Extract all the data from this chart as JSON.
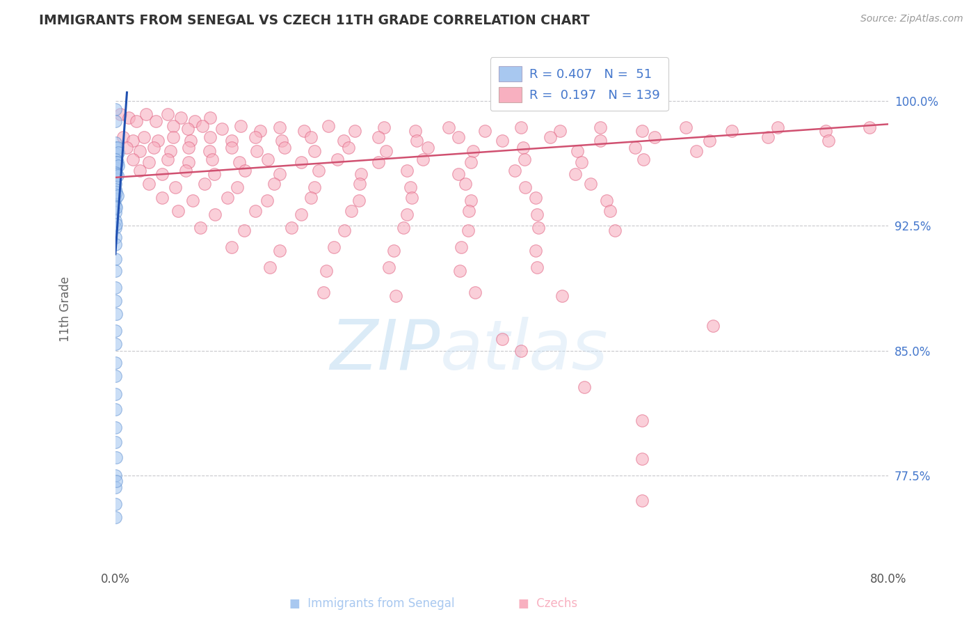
{
  "title": "IMMIGRANTS FROM SENEGAL VS CZECH 11TH GRADE CORRELATION CHART",
  "source": "Source: ZipAtlas.com",
  "ylabel": "11th Grade",
  "ytick_labels": [
    "100.0%",
    "92.5%",
    "85.0%",
    "77.5%"
  ],
  "ytick_values": [
    1.0,
    0.925,
    0.85,
    0.775
  ],
  "xlim": [
    0.0,
    0.8
  ],
  "ylim": [
    0.72,
    1.03
  ],
  "watermark_zip": "ZIP",
  "watermark_atlas": "atlas",
  "legend_r_blue": "0.407",
  "legend_n_blue": "51",
  "legend_r_pink": "0.197",
  "legend_n_pink": "139",
  "blue_color": "#a8c8f0",
  "blue_edge_color": "#6090d0",
  "pink_color": "#f8b0c0",
  "pink_edge_color": "#e06080",
  "blue_line_color": "#2050b0",
  "pink_line_color": "#d05070",
  "blue_text_color": "#4477cc",
  "legend_box_blue": "#a8c8f0",
  "legend_box_pink": "#f8b0c0",
  "blue_scatter": [
    [
      0.0,
      0.995
    ],
    [
      0.0,
      0.988
    ],
    [
      0.0,
      0.975
    ],
    [
      0.0,
      0.972
    ],
    [
      0.0,
      0.968
    ],
    [
      0.002,
      0.972
    ],
    [
      0.003,
      0.969
    ],
    [
      0.0,
      0.965
    ],
    [
      0.0,
      0.962
    ],
    [
      0.0,
      0.96
    ],
    [
      0.001,
      0.963
    ],
    [
      0.002,
      0.963
    ],
    [
      0.003,
      0.961
    ],
    [
      0.0,
      0.957
    ],
    [
      0.0,
      0.953
    ],
    [
      0.0,
      0.95
    ],
    [
      0.001,
      0.956
    ],
    [
      0.002,
      0.955
    ],
    [
      0.0,
      0.947
    ],
    [
      0.0,
      0.944
    ],
    [
      0.0,
      0.941
    ],
    [
      0.001,
      0.945
    ],
    [
      0.002,
      0.943
    ],
    [
      0.0,
      0.937
    ],
    [
      0.0,
      0.933
    ],
    [
      0.001,
      0.936
    ],
    [
      0.0,
      0.928
    ],
    [
      0.0,
      0.924
    ],
    [
      0.001,
      0.926
    ],
    [
      0.0,
      0.918
    ],
    [
      0.0,
      0.914
    ],
    [
      0.0,
      0.905
    ],
    [
      0.0,
      0.898
    ],
    [
      0.0,
      0.888
    ],
    [
      0.0,
      0.88
    ],
    [
      0.001,
      0.872
    ],
    [
      0.0,
      0.862
    ],
    [
      0.0,
      0.854
    ],
    [
      0.0,
      0.843
    ],
    [
      0.0,
      0.835
    ],
    [
      0.0,
      0.824
    ],
    [
      0.0,
      0.815
    ],
    [
      0.0,
      0.804
    ],
    [
      0.0,
      0.795
    ],
    [
      0.001,
      0.786
    ],
    [
      0.0,
      0.775
    ],
    [
      0.0,
      0.768
    ],
    [
      0.001,
      0.772
    ],
    [
      0.0,
      0.758
    ],
    [
      0.0,
      0.75
    ]
  ],
  "pink_scatter": [
    [
      0.005,
      0.992
    ],
    [
      0.014,
      0.99
    ],
    [
      0.022,
      0.988
    ],
    [
      0.032,
      0.992
    ],
    [
      0.042,
      0.988
    ],
    [
      0.054,
      0.992
    ],
    [
      0.068,
      0.99
    ],
    [
      0.082,
      0.988
    ],
    [
      0.098,
      0.99
    ],
    [
      0.06,
      0.985
    ],
    [
      0.075,
      0.983
    ],
    [
      0.09,
      0.985
    ],
    [
      0.11,
      0.983
    ],
    [
      0.13,
      0.985
    ],
    [
      0.15,
      0.982
    ],
    [
      0.17,
      0.984
    ],
    [
      0.195,
      0.982
    ],
    [
      0.22,
      0.985
    ],
    [
      0.248,
      0.982
    ],
    [
      0.278,
      0.984
    ],
    [
      0.31,
      0.982
    ],
    [
      0.345,
      0.984
    ],
    [
      0.382,
      0.982
    ],
    [
      0.42,
      0.984
    ],
    [
      0.46,
      0.982
    ],
    [
      0.502,
      0.984
    ],
    [
      0.545,
      0.982
    ],
    [
      0.59,
      0.984
    ],
    [
      0.638,
      0.982
    ],
    [
      0.685,
      0.984
    ],
    [
      0.735,
      0.982
    ],
    [
      0.78,
      0.984
    ],
    [
      0.008,
      0.978
    ],
    [
      0.018,
      0.976
    ],
    [
      0.03,
      0.978
    ],
    [
      0.044,
      0.976
    ],
    [
      0.06,
      0.978
    ],
    [
      0.078,
      0.976
    ],
    [
      0.098,
      0.978
    ],
    [
      0.12,
      0.976
    ],
    [
      0.145,
      0.978
    ],
    [
      0.172,
      0.976
    ],
    [
      0.202,
      0.978
    ],
    [
      0.236,
      0.976
    ],
    [
      0.272,
      0.978
    ],
    [
      0.312,
      0.976
    ],
    [
      0.355,
      0.978
    ],
    [
      0.4,
      0.976
    ],
    [
      0.45,
      0.978
    ],
    [
      0.502,
      0.976
    ],
    [
      0.558,
      0.978
    ],
    [
      0.615,
      0.976
    ],
    [
      0.675,
      0.978
    ],
    [
      0.738,
      0.976
    ],
    [
      0.012,
      0.972
    ],
    [
      0.025,
      0.97
    ],
    [
      0.04,
      0.972
    ],
    [
      0.057,
      0.97
    ],
    [
      0.076,
      0.972
    ],
    [
      0.097,
      0.97
    ],
    [
      0.12,
      0.972
    ],
    [
      0.146,
      0.97
    ],
    [
      0.175,
      0.972
    ],
    [
      0.206,
      0.97
    ],
    [
      0.241,
      0.972
    ],
    [
      0.28,
      0.97
    ],
    [
      0.323,
      0.972
    ],
    [
      0.37,
      0.97
    ],
    [
      0.422,
      0.972
    ],
    [
      0.478,
      0.97
    ],
    [
      0.538,
      0.972
    ],
    [
      0.601,
      0.97
    ],
    [
      0.018,
      0.965
    ],
    [
      0.035,
      0.963
    ],
    [
      0.054,
      0.965
    ],
    [
      0.076,
      0.963
    ],
    [
      0.1,
      0.965
    ],
    [
      0.128,
      0.963
    ],
    [
      0.158,
      0.965
    ],
    [
      0.192,
      0.963
    ],
    [
      0.23,
      0.965
    ],
    [
      0.272,
      0.963
    ],
    [
      0.318,
      0.965
    ],
    [
      0.368,
      0.963
    ],
    [
      0.423,
      0.965
    ],
    [
      0.482,
      0.963
    ],
    [
      0.546,
      0.965
    ],
    [
      0.025,
      0.958
    ],
    [
      0.048,
      0.956
    ],
    [
      0.073,
      0.958
    ],
    [
      0.102,
      0.956
    ],
    [
      0.134,
      0.958
    ],
    [
      0.17,
      0.956
    ],
    [
      0.21,
      0.958
    ],
    [
      0.254,
      0.956
    ],
    [
      0.302,
      0.958
    ],
    [
      0.355,
      0.956
    ],
    [
      0.413,
      0.958
    ],
    [
      0.476,
      0.956
    ],
    [
      0.035,
      0.95
    ],
    [
      0.062,
      0.948
    ],
    [
      0.092,
      0.95
    ],
    [
      0.126,
      0.948
    ],
    [
      0.164,
      0.95
    ],
    [
      0.206,
      0.948
    ],
    [
      0.253,
      0.95
    ],
    [
      0.305,
      0.948
    ],
    [
      0.362,
      0.95
    ],
    [
      0.424,
      0.948
    ],
    [
      0.492,
      0.95
    ],
    [
      0.048,
      0.942
    ],
    [
      0.08,
      0.94
    ],
    [
      0.116,
      0.942
    ],
    [
      0.157,
      0.94
    ],
    [
      0.202,
      0.942
    ],
    [
      0.252,
      0.94
    ],
    [
      0.307,
      0.942
    ],
    [
      0.368,
      0.94
    ],
    [
      0.435,
      0.942
    ],
    [
      0.508,
      0.94
    ],
    [
      0.065,
      0.934
    ],
    [
      0.103,
      0.932
    ],
    [
      0.145,
      0.934
    ],
    [
      0.192,
      0.932
    ],
    [
      0.244,
      0.934
    ],
    [
      0.302,
      0.932
    ],
    [
      0.366,
      0.934
    ],
    [
      0.436,
      0.932
    ],
    [
      0.512,
      0.934
    ],
    [
      0.088,
      0.924
    ],
    [
      0.133,
      0.922
    ],
    [
      0.182,
      0.924
    ],
    [
      0.237,
      0.922
    ],
    [
      0.298,
      0.924
    ],
    [
      0.365,
      0.922
    ],
    [
      0.438,
      0.924
    ],
    [
      0.517,
      0.922
    ],
    [
      0.12,
      0.912
    ],
    [
      0.17,
      0.91
    ],
    [
      0.226,
      0.912
    ],
    [
      0.288,
      0.91
    ],
    [
      0.358,
      0.912
    ],
    [
      0.435,
      0.91
    ],
    [
      0.16,
      0.9
    ],
    [
      0.218,
      0.898
    ],
    [
      0.283,
      0.9
    ],
    [
      0.356,
      0.898
    ],
    [
      0.436,
      0.9
    ],
    [
      0.215,
      0.885
    ],
    [
      0.29,
      0.883
    ],
    [
      0.372,
      0.885
    ],
    [
      0.462,
      0.883
    ],
    [
      0.618,
      0.865
    ],
    [
      0.4,
      0.857
    ],
    [
      0.42,
      0.85
    ],
    [
      0.485,
      0.828
    ],
    [
      0.545,
      0.808
    ],
    [
      0.545,
      0.785
    ],
    [
      0.545,
      0.76
    ]
  ],
  "blue_trendline_pts": [
    [
      0.0,
      0.908
    ],
    [
      0.012,
      1.005
    ]
  ],
  "pink_trendline_pts": [
    [
      0.0,
      0.954
    ],
    [
      0.8,
      0.986
    ]
  ]
}
